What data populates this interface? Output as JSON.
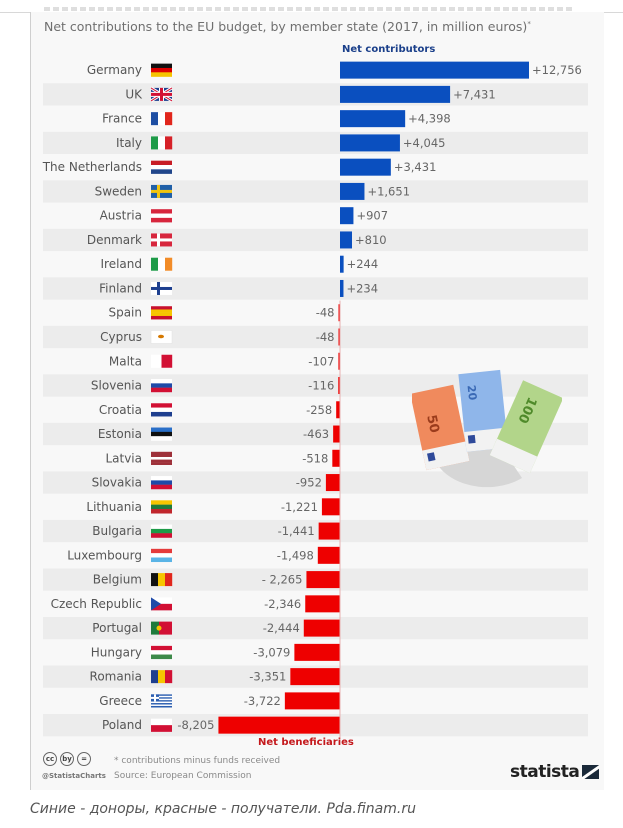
{
  "subtitle": "Net contributions to the EU budget, by member state (2017, in million euros)",
  "subtitle_mark": "*",
  "legend": {
    "positive": "Net contributors",
    "negative": "Net beneficiaries"
  },
  "colors": {
    "positive": "#0a4fbf",
    "negative": "#ee0000",
    "stripe": "#ececec"
  },
  "footer": {
    "note": "* contributions minus funds received",
    "source": "Source: European Commission",
    "handle": "@StatistaCharts",
    "cc_icons": [
      "cc",
      "by",
      "="
    ],
    "brand": "statista"
  },
  "caption": "Синие - доноры, красные - получатели. Pda.finam.ru",
  "chart_data": {
    "type": "bar",
    "orientation": "horizontal",
    "title": "Net contributions to the EU budget, by member state (2017, in million euros)*",
    "xlabel": "",
    "ylabel": "",
    "xlim": [
      -8205,
      12756
    ],
    "grid": false,
    "legend": [
      "Net contributors",
      "Net beneficiaries"
    ],
    "categories": [
      "Germany",
      "UK",
      "France",
      "Italy",
      "The Netherlands",
      "Sweden",
      "Austria",
      "Denmark",
      "Ireland",
      "Finland",
      "Spain",
      "Cyprus",
      "Malta",
      "Slovenia",
      "Croatia",
      "Estonia",
      "Latvia",
      "Slovakia",
      "Lithuania",
      "Bulgaria",
      "Luxembourg",
      "Belgium",
      "Czech Republic",
      "Portugal",
      "Hungary",
      "Romania",
      "Greece",
      "Poland"
    ],
    "values": [
      12756,
      7431,
      4398,
      4045,
      3431,
      1651,
      907,
      810,
      244,
      234,
      -48,
      -48,
      -107,
      -116,
      -258,
      -463,
      -518,
      -952,
      -1221,
      -1441,
      -1498,
      -2265,
      -2346,
      -2444,
      -3079,
      -3351,
      -3722,
      -8205
    ],
    "value_labels": [
      "+12,756",
      "+7,431",
      "+4,398",
      "+4,045",
      "+3,431",
      "+1,651",
      "+907",
      "+810",
      "+244",
      "+234",
      "-48",
      "-48",
      "-107",
      "-116",
      "-258",
      "-463",
      "-518",
      "-952",
      "-1,221",
      "-1,441",
      "-1,498",
      "- 2,265",
      "-2,346",
      "-2,444",
      "-3,079",
      "-3,351",
      "-3,722",
      "-8,205"
    ],
    "flags": [
      "germany-flag",
      "uk-flag",
      "france-flag",
      "italy-flag",
      "netherlands-flag",
      "sweden-flag",
      "austria-flag",
      "denmark-flag",
      "ireland-flag",
      "finland-flag",
      "spain-flag",
      "cyprus-flag",
      "malta-flag",
      "slovenia-flag",
      "croatia-flag",
      "estonia-flag",
      "latvia-flag",
      "slovakia-flag",
      "lithuania-flag",
      "bulgaria-flag",
      "luxembourg-flag",
      "belgium-flag",
      "czech-republic-flag",
      "portugal-flag",
      "hungary-flag",
      "romania-flag",
      "greece-flag",
      "poland-flag"
    ]
  }
}
